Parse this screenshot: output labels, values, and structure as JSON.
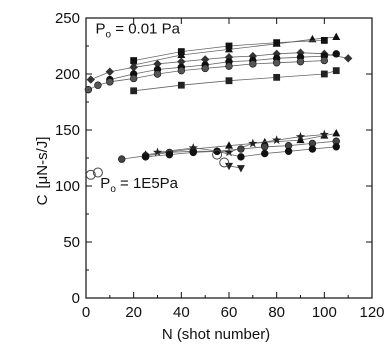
{
  "chart_data": {
    "type": "scatter",
    "title": "",
    "xlabel": "N (shot number)",
    "ylabel_main": "C",
    "ylabel_unit": "[μN-s/J]",
    "xlim": [
      0,
      120
    ],
    "ylim": [
      0,
      250
    ],
    "xticks": [
      0,
      20,
      40,
      60,
      80,
      100,
      120
    ],
    "yticks": [
      0,
      50,
      100,
      150,
      200,
      250
    ],
    "grid": false,
    "annotations": [
      {
        "id": "low-pressure",
        "prefix": "P",
        "subscript": "o",
        "text": " = 0.01 Pa",
        "x": 4,
        "y": 236
      },
      {
        "id": "high-pressure",
        "prefix": "P",
        "subscript": "o",
        "text": " = 1E5Pa",
        "x": 6,
        "y": 98
      }
    ],
    "series": [
      {
        "group": "vacuum",
        "marker": "triangle",
        "fill": "#111111",
        "x": [
          20,
          40,
          60,
          80,
          95,
          105
        ],
        "y": [
          208,
          217,
          222,
          227,
          231,
          233
        ]
      },
      {
        "group": "vacuum",
        "marker": "square",
        "fill": "#111111",
        "x": [
          20,
          40,
          60,
          80,
          100
        ],
        "y": [
          212,
          220,
          225,
          228,
          230
        ]
      },
      {
        "group": "vacuum",
        "marker": "diamond",
        "fill": "#333333",
        "x": [
          2,
          10,
          20,
          30,
          40,
          50,
          60,
          70,
          80,
          90,
          100,
          110
        ],
        "y": [
          195,
          202,
          206,
          209,
          211,
          213,
          215,
          216,
          218,
          219,
          218,
          214
        ]
      },
      {
        "group": "vacuum",
        "marker": "circle",
        "fill": "#111111",
        "x": [
          10,
          20,
          30,
          40,
          50,
          60,
          70,
          80,
          90,
          100,
          105
        ],
        "y": [
          195,
          200,
          204,
          206,
          208,
          211,
          212,
          214,
          215,
          216,
          218
        ]
      },
      {
        "group": "vacuum",
        "marker": "circle",
        "fill": "#555555",
        "x": [
          1,
          5,
          10,
          20,
          30,
          40,
          50,
          60,
          70,
          80,
          90,
          100
        ],
        "y": [
          186,
          190,
          193,
          196,
          200,
          203,
          205,
          207,
          209,
          210,
          211,
          212
        ]
      },
      {
        "group": "vacuum",
        "marker": "square",
        "fill": "#222222",
        "x": [
          20,
          40,
          60,
          80,
          100,
          105
        ],
        "y": [
          185,
          190,
          194,
          197,
          200,
          203
        ]
      },
      {
        "group": "atmosphere",
        "marker": "triangle",
        "fill": "#111111",
        "x": [
          25,
          45,
          60,
          75,
          90,
          100,
          105
        ],
        "y": [
          128,
          133,
          136,
          139,
          141,
          145,
          147
        ]
      },
      {
        "group": "atmosphere",
        "marker": "star",
        "fill": "#222222",
        "x": [
          30,
          45,
          60,
          70,
          80,
          90,
          100
        ],
        "y": [
          130,
          134,
          130,
          138,
          141,
          144,
          146
        ]
      },
      {
        "group": "atmosphere",
        "marker": "circle",
        "fill": "#444444",
        "x": [
          15,
          25,
          35,
          45,
          55,
          65,
          75,
          85,
          95,
          105
        ],
        "y": [
          124,
          127,
          130,
          131,
          131,
          133,
          135,
          136,
          138,
          140
        ]
      },
      {
        "group": "atmosphere",
        "marker": "circle",
        "fill": "#111111",
        "x": [
          25,
          35,
          45,
          55,
          65,
          75,
          85,
          95,
          105
        ],
        "y": [
          126,
          128,
          130,
          131,
          126,
          129,
          131,
          133,
          135
        ]
      },
      {
        "group": "atmosphere",
        "marker": "triangle-down",
        "fill": "#222222",
        "x": [
          60,
          65
        ],
        "y": [
          118,
          116
        ]
      },
      {
        "group": "atmosphere",
        "marker": "open-circle",
        "fill": "none",
        "x": [
          2,
          5,
          55,
          58
        ],
        "y": [
          110,
          112,
          128,
          121
        ]
      }
    ]
  }
}
